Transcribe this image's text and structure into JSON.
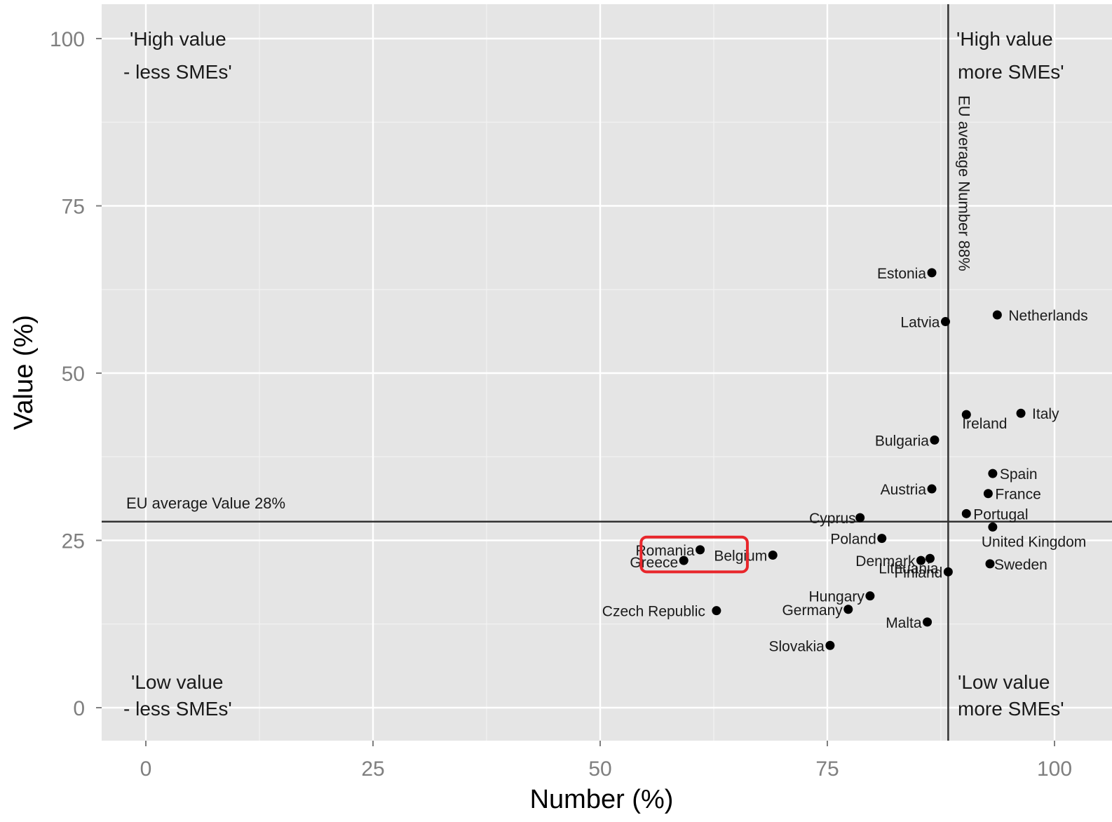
{
  "chart_data": {
    "type": "scatter",
    "title": "",
    "xlabel": "Number (%)",
    "ylabel": "Value (%)",
    "xlim": [
      -5,
      105
    ],
    "ylim": [
      -5,
      105
    ],
    "xticks": [
      "0",
      "25",
      "50",
      "75",
      "100"
    ],
    "yticks": [
      "0",
      "25",
      "50",
      "75",
      "100"
    ],
    "grid": true,
    "points": [
      {
        "label": "Estonia",
        "x": 86.5,
        "y": 65
      },
      {
        "label": "Latvia",
        "x": 88,
        "y": 57.7
      },
      {
        "label": "Netherlands",
        "x": 93.7,
        "y": 58.7
      },
      {
        "label": "Ireland",
        "x": 90.3,
        "y": 43.8
      },
      {
        "label": "Italy",
        "x": 96.3,
        "y": 44
      },
      {
        "label": "Bulgaria",
        "x": 86.8,
        "y": 40
      },
      {
        "label": "Spain",
        "x": 93.2,
        "y": 35
      },
      {
        "label": "France",
        "x": 92.7,
        "y": 32
      },
      {
        "label": "Austria",
        "x": 86.5,
        "y": 32.7
      },
      {
        "label": "Portugal",
        "x": 90.3,
        "y": 29
      },
      {
        "label": "Cyprus",
        "x": 78.6,
        "y": 28.4
      },
      {
        "label": "United Kingdom",
        "x": 93.2,
        "y": 27
      },
      {
        "label": "Poland",
        "x": 81,
        "y": 25.3
      },
      {
        "label": "Lithuania",
        "x": 86.3,
        "y": 22.3
      },
      {
        "label": "Denmark",
        "x": 85.3,
        "y": 22
      },
      {
        "label": "Finland",
        "x": 88.3,
        "y": 20.3
      },
      {
        "label": "Sweden",
        "x": 92.9,
        "y": 21.5
      },
      {
        "label": "Romania",
        "x": 61,
        "y": 23.6
      },
      {
        "label": "Greece",
        "x": 59.2,
        "y": 22
      },
      {
        "label": "Belgium",
        "x": 69,
        "y": 22.8
      },
      {
        "label": "Hungary",
        "x": 79.7,
        "y": 16.7
      },
      {
        "label": "Germany",
        "x": 77.3,
        "y": 14.7
      },
      {
        "label": "Czech Republic",
        "x": 62.8,
        "y": 14.5
      },
      {
        "label": "Malta",
        "x": 86,
        "y": 12.8
      },
      {
        "label": "Slovakia",
        "x": 75.3,
        "y": 9.3
      }
    ],
    "reference_lines": {
      "vertical": {
        "x": 88.3,
        "label": "EU average Number 88%"
      },
      "horizontal": {
        "y": 27.8,
        "label": "EU average Value 28%"
      }
    },
    "quadrant_labels": {
      "top_left": [
        "'High value",
        "- less SMEs'"
      ],
      "top_right": [
        "'High value",
        "more SMEs'"
      ],
      "bottom_left": [
        "'Low value",
        "- less SMEs'"
      ],
      "bottom_right": [
        "'Low value",
        "more SMEs'"
      ]
    },
    "highlight": {
      "color": "#e8262b",
      "x_range": [
        54.5,
        66.2
      ],
      "y_range": [
        20.3,
        25.5
      ]
    }
  }
}
